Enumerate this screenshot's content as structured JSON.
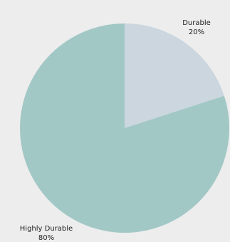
{
  "chart_data": {
    "type": "pie",
    "categories": [
      "Durable",
      "Highly Durable"
    ],
    "values": [
      20,
      80
    ],
    "unit": "%",
    "colors": [
      "#cbd6df",
      "#a2c8c6"
    ],
    "labels": [
      {
        "name": "Durable",
        "value_text": "20%"
      },
      {
        "name": "Highly Durable",
        "value_text": "80%"
      }
    ],
    "start_angle_deg": 0,
    "direction": "clockwise"
  }
}
